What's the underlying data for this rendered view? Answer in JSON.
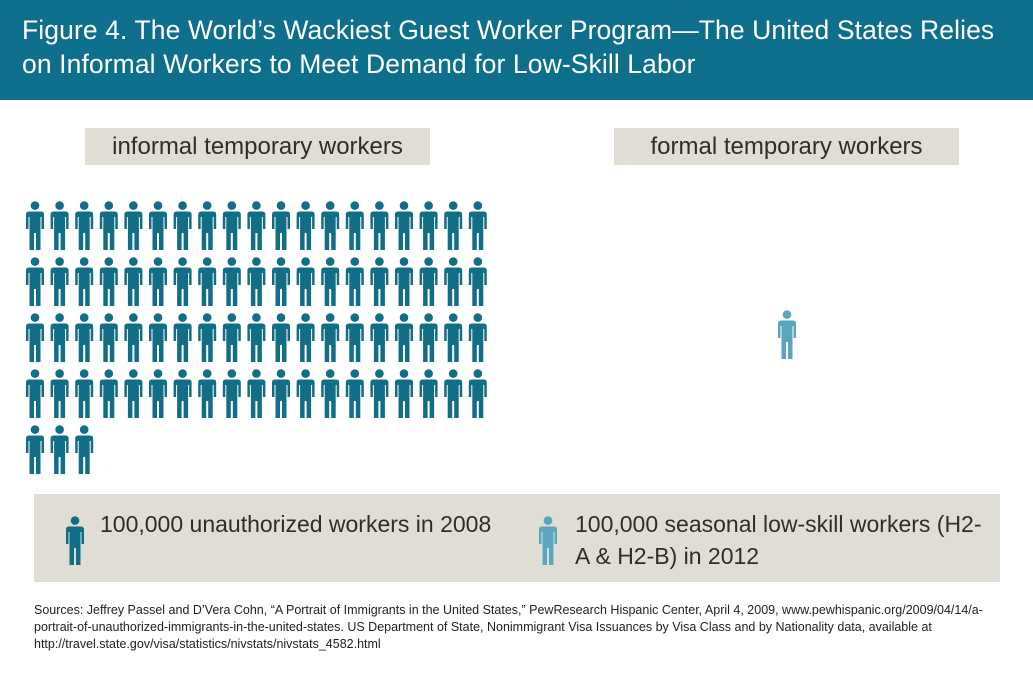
{
  "header": {
    "title": "Figure 4. The World’s Wackiest Guest Worker Program—The United States Relies on Informal Workers to Meet Demand for Low-Skill Labor"
  },
  "colors": {
    "banner": "#0e6f8c",
    "informal_icon": "#126e87",
    "formal_icon": "#5aa6bf",
    "label_background": "#e0ddd5"
  },
  "chart_data": {
    "type": "pictogram",
    "unit": "100,000",
    "categories": [
      "informal temporary workers",
      "formal temporary workers"
    ],
    "series": [
      {
        "name": "informal temporary workers",
        "icon_count": 79,
        "legend": "100,000 unauthorized workers in 2008",
        "color": "#126e87"
      },
      {
        "name": "formal temporary workers",
        "icon_count": 1,
        "legend": "100,000 seasonal low-skill workers (H2-A & H2-B) in 2012",
        "color": "#5aa6bf"
      }
    ]
  },
  "legend": {
    "informal": "100,000 unauthorized workers in 2008",
    "formal": "100,000 seasonal low-skill workers (H2-A & H2-B) in 2012"
  },
  "sources": "Sources: Jeffrey Passel and D’Vera Cohn, “A Portrait of Immigrants in the United States,” PewResearch Hispanic Center, April 4, 2009, www.pewhispanic.org/2009/04/14/a-portrait-of-unauthorized-immigrants-in-the-united-states. US Department of State, Nonimmigrant Visa Issuances by Visa Class and by Nationality data, available at http://travel.state.gov/visa/statistics/nivstats/nivstats_4582.html"
}
